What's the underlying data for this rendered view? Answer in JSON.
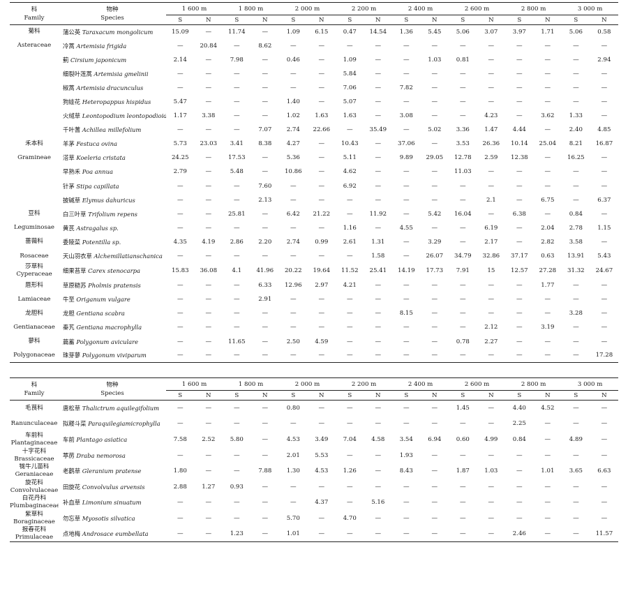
{
  "header": {
    "family_zh": "科",
    "family_en": "Family",
    "species_zh": "物种",
    "species_en": "Species",
    "elevations": [
      "1 600 m",
      "1 800 m",
      "2 000 m",
      "2 200 m",
      "2 400 m",
      "2 600 m",
      "2 800 m",
      "3 000 m"
    ],
    "aspects": [
      "S",
      "N"
    ]
  },
  "table1_rows": [
    {
      "fam": "菊科",
      "sp_zh": "蒲公英",
      "sp_latin": "Taraxacum mongolicum",
      "v": [
        "15.09",
        "—",
        "11.74",
        "—",
        "1.09",
        "6.15",
        "0.47",
        "14.54",
        "1.36",
        "5.45",
        "5.06",
        "3.07",
        "3.97",
        "1.71",
        "5.06",
        "0.58"
      ]
    },
    {
      "fam": "Asteraceae",
      "sp_zh": "冷蒿",
      "sp_latin": "Artemisia frigida",
      "v": [
        "—",
        "20.84",
        "—",
        "8.62",
        "—",
        "—",
        "—",
        "—",
        "—",
        "—",
        "—",
        "—",
        "—",
        "—",
        "—",
        "—"
      ]
    },
    {
      "fam": "",
      "sp_zh": "蓟",
      "sp_latin": "Cirsium japonicum",
      "v": [
        "2.14",
        "—",
        "7.98",
        "—",
        "0.46",
        "—",
        "1.09",
        "—",
        "—",
        "1.03",
        "0.81",
        "—",
        "—",
        "—",
        "—",
        "2.94"
      ]
    },
    {
      "fam": "",
      "sp_zh": "细裂叶莲蒿",
      "sp_latin": "Artemisia gmelinii",
      "v": [
        "—",
        "—",
        "—",
        "—",
        "—",
        "—",
        "5.84",
        "—",
        "—",
        "—",
        "—",
        "—",
        "—",
        "—",
        "—",
        "—"
      ]
    },
    {
      "fam": "",
      "sp_zh": "椒蒿",
      "sp_latin": "Artemisia dracunculus",
      "v": [
        "—",
        "—",
        "—",
        "—",
        "—",
        "—",
        "7.06",
        "—",
        "7.82",
        "—",
        "—",
        "—",
        "—",
        "—",
        "—",
        "—"
      ]
    },
    {
      "fam": "",
      "sp_zh": "狗娃花",
      "sp_latin": "Heteropappus hispidus",
      "v": [
        "5.47",
        "—",
        "—",
        "—",
        "1.40",
        "—",
        "5.07",
        "—",
        "—",
        "—",
        "—",
        "—",
        "—",
        "—",
        "—",
        "—"
      ]
    },
    {
      "fam": "",
      "sp_zh": "火绒草",
      "sp_latin": "Leontopodium leontopodioides",
      "v": [
        "1.17",
        "3.38",
        "—",
        "—",
        "1.02",
        "1.63",
        "1.63",
        "—",
        "3.08",
        "—",
        "—",
        "4.23",
        "—",
        "3.62",
        "1.33",
        "—"
      ]
    },
    {
      "fam": "",
      "sp_zh": "千叶蓍",
      "sp_latin": "Achillea millefolium",
      "v": [
        "—",
        "—",
        "—",
        "7.07",
        "2.74",
        "22.66",
        "—",
        "35.49",
        "—",
        "5.02",
        "3.36",
        "1.47",
        "4.44",
        "—",
        "2.40",
        "4.85"
      ]
    },
    {
      "fam": "禾本科",
      "sp_zh": "羊茅",
      "sp_latin": "Festuca ovina",
      "v": [
        "5.73",
        "23.03",
        "3.41",
        "8.38",
        "4.27",
        "—",
        "10.43",
        "—",
        "37.06",
        "—",
        "3.53",
        "26.36",
        "10.14",
        "25.04",
        "8.21",
        "16.87"
      ]
    },
    {
      "fam": "Gramineae",
      "sp_zh": "溚草",
      "sp_latin": "Koeleria cristata",
      "v": [
        "24.25",
        "—",
        "17.53",
        "—",
        "5.36",
        "—",
        "5.11",
        "—",
        "9.89",
        "29.05",
        "12.78",
        "2.59",
        "12.38",
        "—",
        "16.25",
        "—"
      ]
    },
    {
      "fam": "",
      "sp_zh": "早熟禾",
      "sp_latin": "Poa annua",
      "v": [
        "2.79",
        "—",
        "5.48",
        "—",
        "10.86",
        "—",
        "4.62",
        "—",
        "—",
        "—",
        "11.03",
        "—",
        "—",
        "—",
        "—",
        "—"
      ]
    },
    {
      "fam": "",
      "sp_zh": "针茅",
      "sp_latin": "Stipa capillata",
      "v": [
        "—",
        "—",
        "—",
        "7.60",
        "—",
        "—",
        "6.92",
        "—",
        "—",
        "—",
        "—",
        "—",
        "—",
        "—",
        "—",
        "—"
      ]
    },
    {
      "fam": "",
      "sp_zh": "披碱草",
      "sp_latin": "Elymus dahuricus",
      "v": [
        "—",
        "—",
        "—",
        "2.13",
        "—",
        "—",
        "—",
        "—",
        "—",
        "—",
        "—",
        "2.1",
        "—",
        "6.75",
        "—",
        "6.37"
      ]
    },
    {
      "fam": "豆科",
      "sp_zh": "白三叶草",
      "sp_latin": "Trifolium repens",
      "v": [
        "—",
        "—",
        "25.81",
        "—",
        "6.42",
        "21.22",
        "—",
        "11.92",
        "—",
        "5.42",
        "16.04",
        "—",
        "6.38",
        "—",
        "0.84",
        "—"
      ]
    },
    {
      "fam": "Leguminosae",
      "sp_zh": "黄芪",
      "sp_latin": "Astragalus sp.",
      "v": [
        "—",
        "—",
        "—",
        "—",
        "—",
        "—",
        "1.16",
        "—",
        "4.55",
        "—",
        "—",
        "6.19",
        "—",
        "2.04",
        "2.78",
        "1.15"
      ]
    },
    {
      "fam": "蔷薇科",
      "sp_zh": "委陵菜",
      "sp_latin": "Potentilla sp.",
      "v": [
        "4.35",
        "4.19",
        "2.86",
        "2.20",
        "2.74",
        "0.99",
        "2.61",
        "1.31",
        "—",
        "3.29",
        "—",
        "2.17",
        "—",
        "2.82",
        "3.58",
        "—"
      ]
    },
    {
      "fam": "Rosaceae",
      "sp_zh": "天山羽衣草",
      "sp_latin": "Alchemillatianschanica",
      "v": [
        "—",
        "—",
        "—",
        "—",
        "—",
        "—",
        "—",
        "1.58",
        "—",
        "26.07",
        "34.79",
        "32.86",
        "37.17",
        "0.63",
        "13.91",
        "5.43"
      ]
    },
    {
      "fam": "莎草科\nCyperaceae",
      "sp_zh": "细果苔草",
      "sp_latin": "Carex stenocarpa",
      "v": [
        "15.83",
        "36.08",
        "4.1",
        "41.96",
        "20.22",
        "19.64",
        "11.52",
        "25.41",
        "14.19",
        "17.73",
        "7.91",
        "15",
        "12.57",
        "27.28",
        "31.32",
        "24.67"
      ]
    },
    {
      "fam": "唇形科",
      "sp_zh": "草原糙苏",
      "sp_latin": "Pholmis pratensis",
      "v": [
        "—",
        "—",
        "—",
        "6.33",
        "12.96",
        "2.97",
        "4.21",
        "—",
        "—",
        "—",
        "—",
        "—",
        "—",
        "1.77",
        "—",
        "—"
      ]
    },
    {
      "fam": "Lamiaceae",
      "sp_zh": "牛至",
      "sp_latin": "Origanum vulgare",
      "v": [
        "—",
        "—",
        "—",
        "2.91",
        "—",
        "—",
        "—",
        "—",
        "—",
        "—",
        "—",
        "—",
        "—",
        "—",
        "—",
        "—"
      ]
    },
    {
      "fam": "龙胆科",
      "sp_zh": "龙胆",
      "sp_latin": "Gentiana scabra",
      "v": [
        "—",
        "—",
        "—",
        "—",
        "—",
        "—",
        "—",
        "—",
        "8.15",
        "—",
        "—",
        "—",
        "—",
        "—",
        "3.28",
        "—"
      ]
    },
    {
      "fam": "Gentianaceae",
      "sp_zh": "秦艽",
      "sp_latin": "Gentiana macrophylla",
      "v": [
        "—",
        "—",
        "—",
        "—",
        "—",
        "—",
        "—",
        "—",
        "—",
        "—",
        "—",
        "2.12",
        "—",
        "3.19",
        "—",
        "—"
      ]
    },
    {
      "fam": "蓼科",
      "sp_zh": "萹蓄",
      "sp_latin": "Polygonum aviculare",
      "v": [
        "—",
        "—",
        "11.65",
        "—",
        "2.50",
        "4.59",
        "—",
        "—",
        "—",
        "—",
        "0.78",
        "2.27",
        "—",
        "—",
        "—",
        "—"
      ]
    },
    {
      "fam": "Polygonaceae",
      "sp_zh": "珠芽蓼",
      "sp_latin": "Polygonum viviparum",
      "v": [
        "—",
        "—",
        "—",
        "—",
        "—",
        "—",
        "—",
        "—",
        "—",
        "—",
        "—",
        "—",
        "—",
        "—",
        "—",
        "17.28"
      ]
    }
  ],
  "table2_rows": [
    {
      "fam": "毛茛科",
      "sp_zh": "唐松草",
      "sp_latin": "Thalictrum aquilegifolium",
      "v": [
        "—",
        "—",
        "—",
        "—",
        "0.80",
        "—",
        "—",
        "—",
        "—",
        "—",
        "1.45",
        "—",
        "4.40",
        "4.52",
        "—",
        "—"
      ]
    },
    {
      "fam": "Ranunculaceae",
      "sp_zh": "拟耧斗菜",
      "sp_latin": "Paraquilegiamicrophylla",
      "v": [
        "—",
        "—",
        "—",
        "—",
        "—",
        "—",
        "—",
        "—",
        "—",
        "—",
        "—",
        "—",
        "2.25",
        "—",
        "—",
        "—"
      ]
    },
    {
      "fam": "车前科\nPlantaginaceae",
      "sp_zh": "车前",
      "sp_latin": "Plantago asiatica",
      "v": [
        "7.58",
        "2.52",
        "5.80",
        "—",
        "4.53",
        "3.49",
        "7.04",
        "4.58",
        "3.54",
        "6.94",
        "0.60",
        "4.99",
        "0.84",
        "—",
        "4.89",
        "—"
      ]
    },
    {
      "fam": "十字花科\nBrassicaceae",
      "sp_zh": "葶苈",
      "sp_latin": "Draba nemorosa",
      "v": [
        "—",
        "—",
        "—",
        "—",
        "2.01",
        "5.53",
        "—",
        "—",
        "1.93",
        "—",
        "—",
        "—",
        "—",
        "—",
        "—",
        "—"
      ]
    },
    {
      "fam": "牻牛儿苗科\nGeraniaceae",
      "sp_zh": "老鹳草",
      "sp_latin": "Gleranium pratense",
      "v": [
        "1.80",
        "—",
        "—",
        "7.88",
        "1.30",
        "4.53",
        "1.26",
        "—",
        "8.43",
        "—",
        "1.87",
        "1.03",
        "—",
        "1.01",
        "3.65",
        "6.63"
      ]
    },
    {
      "fam": "旋花科\nConvolvulaceae",
      "sp_zh": "田旋花",
      "sp_latin": "Convolvulus arvensis",
      "v": [
        "2.88",
        "1.27",
        "0.93",
        "—",
        "—",
        "—",
        "—",
        "—",
        "—",
        "—",
        "—",
        "—",
        "—",
        "—",
        "—",
        "—"
      ]
    },
    {
      "fam": "白花丹科\nPlumbaginaceae",
      "sp_zh": "补血草",
      "sp_latin": "Limonium sinuatum",
      "v": [
        "—",
        "—",
        "—",
        "—",
        "—",
        "4.37",
        "—",
        "5.16",
        "—",
        "—",
        "—",
        "—",
        "—",
        "—",
        "—",
        "—"
      ]
    },
    {
      "fam": "紫草科\nBoraginaceae",
      "sp_zh": "勿忘草",
      "sp_latin": "Myosotis silvatica",
      "v": [
        "—",
        "—",
        "—",
        "—",
        "5.70",
        "—",
        "4.70",
        "—",
        "—",
        "—",
        "—",
        "—",
        "—",
        "—",
        "—",
        "—"
      ]
    },
    {
      "fam": "报春花科\nPrimulaceae",
      "sp_zh": "点地梅",
      "sp_latin": "Androsace eumbellata",
      "v": [
        "—",
        "—",
        "1.23",
        "—",
        "1.01",
        "—",
        "—",
        "—",
        "—",
        "—",
        "—",
        "—",
        "2.46",
        "—",
        "—",
        "11.57"
      ]
    }
  ]
}
